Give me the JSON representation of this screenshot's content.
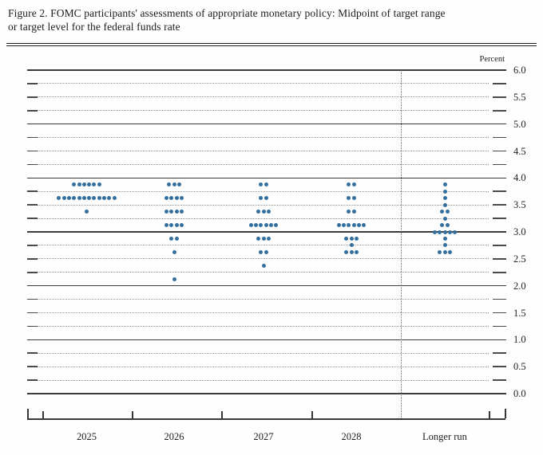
{
  "figure": {
    "title_line1": "Figure 2. FOMC participants' assessments of appropriate monetary policy: Midpoint of target range",
    "title_line2": "or target level for the federal funds rate"
  },
  "chart_data": {
    "type": "scatter",
    "title": "FOMC participants' assessments of appropriate monetary policy: Midpoint of target range or target level for the federal funds rate",
    "unit_label": "Percent",
    "dot_color": "#336f9e",
    "legend_position": "none",
    "grid": "solid lines at whole percents, dotted lines at quarter percents",
    "y_axis": {
      "min": 0.0,
      "max": 6.0,
      "grid_step": 0.25,
      "solid_line_step": 1.0,
      "label_step": 0.5,
      "tick_labels": [
        "6.0",
        "5.5",
        "5.0",
        "4.5",
        "4.0",
        "3.5",
        "3.0",
        "2.5",
        "2.0",
        "1.5",
        "1.0",
        "0.5",
        "0.0"
      ]
    },
    "x_categories": [
      "2025",
      "2026",
      "2027",
      "2028",
      "Longer run"
    ],
    "series": [
      {
        "category": "2025",
        "distribution": [
          {
            "rate": 3.875,
            "count": 6
          },
          {
            "rate": 3.625,
            "count": 12
          },
          {
            "rate": 3.375,
            "count": 1
          }
        ]
      },
      {
        "category": "2026",
        "distribution": [
          {
            "rate": 3.875,
            "count": 3
          },
          {
            "rate": 3.625,
            "count": 4
          },
          {
            "rate": 3.375,
            "count": 4
          },
          {
            "rate": 3.125,
            "count": 4
          },
          {
            "rate": 2.875,
            "count": 2
          },
          {
            "rate": 2.625,
            "count": 1
          },
          {
            "rate": 2.125,
            "count": 1
          }
        ]
      },
      {
        "category": "2027",
        "distribution": [
          {
            "rate": 3.875,
            "count": 2
          },
          {
            "rate": 3.625,
            "count": 2
          },
          {
            "rate": 3.375,
            "count": 3
          },
          {
            "rate": 3.125,
            "count": 6
          },
          {
            "rate": 2.875,
            "count": 3
          },
          {
            "rate": 2.625,
            "count": 2
          },
          {
            "rate": 2.375,
            "count": 1
          }
        ]
      },
      {
        "category": "2028",
        "distribution": [
          {
            "rate": 3.875,
            "count": 2
          },
          {
            "rate": 3.625,
            "count": 2
          },
          {
            "rate": 3.375,
            "count": 2
          },
          {
            "rate": 3.125,
            "count": 6
          },
          {
            "rate": 2.875,
            "count": 3
          },
          {
            "rate": 2.75,
            "count": 1
          },
          {
            "rate": 2.625,
            "count": 3
          }
        ]
      },
      {
        "category": "Longer run",
        "distribution": [
          {
            "rate": 3.875,
            "count": 1
          },
          {
            "rate": 3.75,
            "count": 1
          },
          {
            "rate": 3.625,
            "count": 1
          },
          {
            "rate": 3.5,
            "count": 1
          },
          {
            "rate": 3.375,
            "count": 2
          },
          {
            "rate": 3.25,
            "count": 1
          },
          {
            "rate": 3.125,
            "count": 2
          },
          {
            "rate": 3.0,
            "count": 5
          },
          {
            "rate": 2.875,
            "count": 1
          },
          {
            "rate": 2.75,
            "count": 1
          },
          {
            "rate": 2.625,
            "count": 3
          }
        ]
      }
    ]
  }
}
